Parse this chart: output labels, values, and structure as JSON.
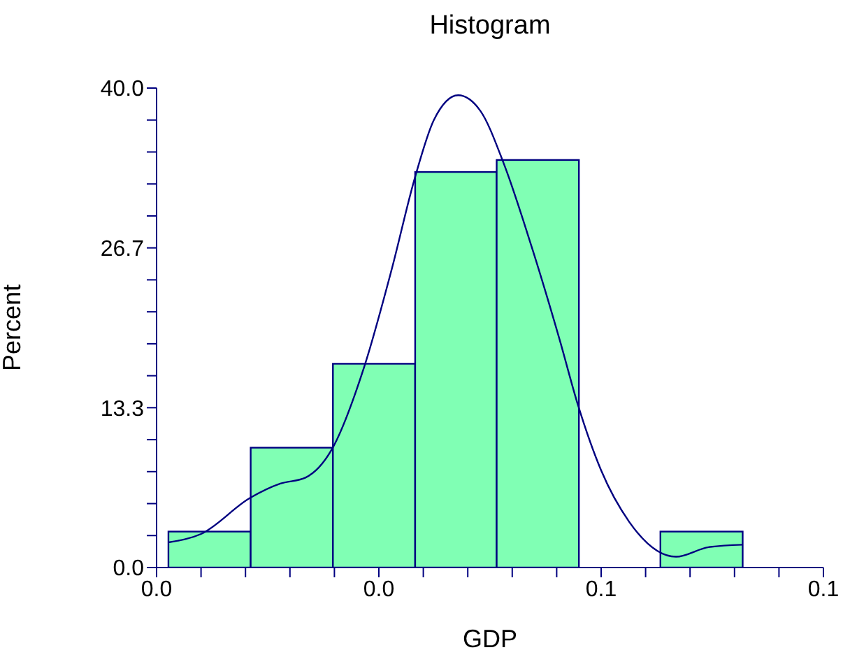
{
  "chart_data": {
    "type": "histogram",
    "title": "Histogram",
    "xlabel": "GDP",
    "ylabel": "Percent",
    "bins": [
      0.0016,
      0.0127,
      0.0238,
      0.0349,
      0.0459,
      0.057,
      0.068,
      0.0791
    ],
    "values": [
      3.0,
      10.0,
      17.0,
      33.0,
      34.0,
      0,
      3.0
    ],
    "color": "#80ffb4",
    "series": [
      {
        "type": "line",
        "color": "#000080",
        "x": [
          0.0016,
          0.006,
          0.0126,
          0.0167,
          0.0201,
          0.0236,
          0.028,
          0.0317,
          0.0349,
          0.0374,
          0.0407,
          0.0437,
          0.0468,
          0.0506,
          0.0544,
          0.0569,
          0.06,
          0.0638,
          0.0701,
          0.0745,
          0.0791
        ],
        "values": [
          2.1,
          2.8,
          5.8,
          7.0,
          7.5,
          9.8,
          16.7,
          24.8,
          32.6,
          37.3,
          39.4,
          38.1,
          33.8,
          26.8,
          19.0,
          13.5,
          8.1,
          3.8,
          0.9,
          1.7,
          1.9
        ]
      }
    ],
    "xlim": [
      0,
      0.09
    ],
    "xticks": [
      {
        "value": 0,
        "label": "0.0"
      },
      {
        "value": 0.006,
        "label": null
      },
      {
        "value": 0.012,
        "label": null
      },
      {
        "value": 0.018,
        "label": null
      },
      {
        "value": 0.024,
        "label": null
      },
      {
        "value": 0.03,
        "label": "0.0"
      },
      {
        "value": 0.036,
        "label": null
      },
      {
        "value": 0.042,
        "label": null
      },
      {
        "value": 0.048,
        "label": null
      },
      {
        "value": 0.054,
        "label": null
      },
      {
        "value": 0.06,
        "label": "0.1"
      },
      {
        "value": 0.066,
        "label": null
      },
      {
        "value": 0.072,
        "label": null
      },
      {
        "value": 0.078,
        "label": null
      },
      {
        "value": 0.084,
        "label": null
      },
      {
        "value": 0.09,
        "label": "0.1"
      }
    ],
    "ylim": [
      0,
      40
    ],
    "yticks": [
      {
        "value": 0,
        "label": "0.0"
      },
      {
        "value": 2.667,
        "label": null
      },
      {
        "value": 5.333,
        "label": null
      },
      {
        "value": 8,
        "label": null
      },
      {
        "value": 10.667,
        "label": null
      },
      {
        "value": 13.333,
        "label": "13.3"
      },
      {
        "value": 16,
        "label": null
      },
      {
        "value": 18.667,
        "label": null
      },
      {
        "value": 21.333,
        "label": null
      },
      {
        "value": 24,
        "label": null
      },
      {
        "value": 26.667,
        "label": "26.7"
      },
      {
        "value": 29.333,
        "label": null
      },
      {
        "value": 32,
        "label": null
      },
      {
        "value": 34.667,
        "label": null
      },
      {
        "value": 37.333,
        "label": null
      },
      {
        "value": 40,
        "label": "40.0"
      }
    ],
    "grid": false,
    "legend": false
  }
}
